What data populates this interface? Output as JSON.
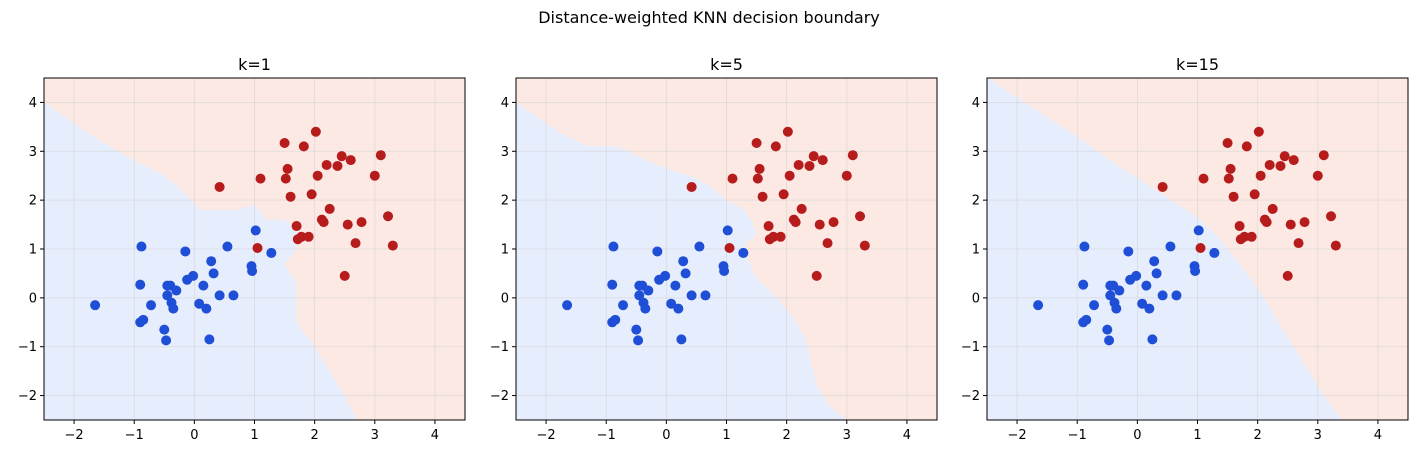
{
  "suptitle": "Distance-weighted KNN decision boundary",
  "colors": {
    "class0_point": "#1f4fd6",
    "class1_point": "#b71c1c",
    "class0_region": "#e6edfd",
    "class1_region": "#fce9e3",
    "grid": "#d3d3d3"
  },
  "chart_data": [
    {
      "type": "scatter",
      "title": "k=1",
      "xlabel": "",
      "ylabel": "",
      "xlim": [
        -2.5,
        4.5
      ],
      "ylim": [
        -2.5,
        4.5
      ],
      "xticks": [
        -2,
        -1,
        0,
        1,
        2,
        3,
        4
      ],
      "yticks": [
        -2,
        -1,
        0,
        1,
        2,
        3,
        4
      ],
      "grid": true,
      "boundary": [
        [
          -2.5,
          4.0
        ],
        [
          -1.8,
          3.4
        ],
        [
          -1.0,
          2.8
        ],
        [
          -0.5,
          2.5
        ],
        [
          -0.3,
          2.3
        ],
        [
          0.1,
          1.8
        ],
        [
          0.4,
          1.8
        ],
        [
          0.7,
          1.8
        ],
        [
          1.0,
          1.9
        ],
        [
          1.2,
          1.6
        ],
        [
          1.5,
          1.6
        ],
        [
          1.7,
          1.4
        ],
        [
          1.7,
          1.0
        ],
        [
          1.5,
          0.7
        ],
        [
          1.7,
          0.3
        ],
        [
          1.7,
          -0.5
        ],
        [
          2.0,
          -1.0
        ],
        [
          2.3,
          -1.6
        ],
        [
          2.5,
          -2.0
        ],
        [
          2.7,
          -2.5
        ]
      ],
      "series": [
        {
          "class": 0,
          "points": [
            [
              -1.65,
              -0.15
            ],
            [
              -0.88,
              1.05
            ],
            [
              -0.9,
              0.27
            ],
            [
              -0.85,
              -0.45
            ],
            [
              -0.9,
              -0.5
            ],
            [
              -0.72,
              -0.15
            ],
            [
              -0.5,
              -0.65
            ],
            [
              -0.47,
              -0.87
            ],
            [
              -0.45,
              0.25
            ],
            [
              -0.45,
              0.05
            ],
            [
              -0.4,
              0.25
            ],
            [
              -0.38,
              -0.1
            ],
            [
              -0.35,
              -0.22
            ],
            [
              -0.3,
              0.15
            ],
            [
              -0.15,
              0.95
            ],
            [
              -0.12,
              0.37
            ],
            [
              -0.02,
              0.45
            ],
            [
              0.08,
              -0.12
            ],
            [
              0.15,
              0.25
            ],
            [
              0.2,
              -0.22
            ],
            [
              0.25,
              -0.85
            ],
            [
              0.28,
              0.75
            ],
            [
              0.32,
              0.5
            ],
            [
              0.42,
              0.05
            ],
            [
              0.55,
              1.05
            ],
            [
              0.65,
              0.05
            ],
            [
              0.95,
              0.65
            ],
            [
              0.96,
              0.55
            ],
            [
              1.02,
              1.38
            ],
            [
              1.28,
              0.92
            ]
          ]
        },
        {
          "class": 1,
          "points": [
            [
              0.42,
              2.27
            ],
            [
              1.05,
              1.02
            ],
            [
              1.1,
              2.44
            ],
            [
              1.5,
              3.17
            ],
            [
              1.52,
              2.44
            ],
            [
              1.55,
              2.64
            ],
            [
              1.6,
              2.07
            ],
            [
              1.7,
              1.47
            ],
            [
              1.72,
              1.2
            ],
            [
              1.78,
              1.25
            ],
            [
              1.82,
              3.1
            ],
            [
              1.9,
              1.25
            ],
            [
              1.95,
              2.12
            ],
            [
              2.02,
              3.4
            ],
            [
              2.05,
              2.5
            ],
            [
              2.12,
              1.6
            ],
            [
              2.15,
              1.55
            ],
            [
              2.2,
              2.72
            ],
            [
              2.25,
              1.82
            ],
            [
              2.38,
              2.7
            ],
            [
              2.45,
              2.9
            ],
            [
              2.5,
              0.45
            ],
            [
              2.55,
              1.5
            ],
            [
              2.6,
              2.82
            ],
            [
              2.68,
              1.12
            ],
            [
              2.78,
              1.55
            ],
            [
              3.0,
              2.5
            ],
            [
              3.1,
              2.92
            ],
            [
              3.22,
              1.67
            ],
            [
              3.3,
              1.07
            ]
          ]
        }
      ]
    },
    {
      "type": "scatter",
      "title": "k=5",
      "xlabel": "",
      "ylabel": "",
      "xlim": [
        -2.5,
        4.5
      ],
      "ylim": [
        -2.5,
        4.5
      ],
      "xticks": [
        -2,
        -1,
        0,
        1,
        2,
        3,
        4
      ],
      "yticks": [
        -2,
        -1,
        0,
        1,
        2,
        3,
        4
      ],
      "grid": true,
      "boundary": [
        [
          -2.5,
          4.0
        ],
        [
          -1.8,
          3.4
        ],
        [
          -1.3,
          3.1
        ],
        [
          -0.8,
          3.1
        ],
        [
          -0.3,
          2.8
        ],
        [
          0.1,
          2.6
        ],
        [
          0.4,
          2.5
        ],
        [
          0.7,
          2.3
        ],
        [
          0.8,
          2.2
        ],
        [
          1.0,
          2.0
        ],
        [
          1.3,
          1.8
        ],
        [
          1.4,
          1.6
        ],
        [
          1.5,
          1.3
        ],
        [
          1.3,
          1.1
        ],
        [
          1.35,
          0.8
        ],
        [
          1.5,
          0.4
        ],
        [
          1.8,
          0.05
        ],
        [
          2.1,
          -0.4
        ],
        [
          2.3,
          -0.8
        ],
        [
          2.4,
          -1.3
        ],
        [
          2.5,
          -1.8
        ],
        [
          2.7,
          -2.2
        ],
        [
          3.0,
          -2.5
        ]
      ],
      "series": [
        {
          "class": 0,
          "points": [
            [
              -1.65,
              -0.15
            ],
            [
              -0.88,
              1.05
            ],
            [
              -0.9,
              0.27
            ],
            [
              -0.85,
              -0.45
            ],
            [
              -0.9,
              -0.5
            ],
            [
              -0.72,
              -0.15
            ],
            [
              -0.5,
              -0.65
            ],
            [
              -0.47,
              -0.87
            ],
            [
              -0.45,
              0.25
            ],
            [
              -0.45,
              0.05
            ],
            [
              -0.4,
              0.25
            ],
            [
              -0.38,
              -0.1
            ],
            [
              -0.35,
              -0.22
            ],
            [
              -0.3,
              0.15
            ],
            [
              -0.15,
              0.95
            ],
            [
              -0.12,
              0.37
            ],
            [
              -0.02,
              0.45
            ],
            [
              0.08,
              -0.12
            ],
            [
              0.15,
              0.25
            ],
            [
              0.2,
              -0.22
            ],
            [
              0.25,
              -0.85
            ],
            [
              0.28,
              0.75
            ],
            [
              0.32,
              0.5
            ],
            [
              0.42,
              0.05
            ],
            [
              0.55,
              1.05
            ],
            [
              0.65,
              0.05
            ],
            [
              0.95,
              0.65
            ],
            [
              0.96,
              0.55
            ],
            [
              1.02,
              1.38
            ],
            [
              1.28,
              0.92
            ]
          ]
        },
        {
          "class": 1,
          "points": [
            [
              0.42,
              2.27
            ],
            [
              1.05,
              1.02
            ],
            [
              1.1,
              2.44
            ],
            [
              1.5,
              3.17
            ],
            [
              1.52,
              2.44
            ],
            [
              1.55,
              2.64
            ],
            [
              1.6,
              2.07
            ],
            [
              1.7,
              1.47
            ],
            [
              1.72,
              1.2
            ],
            [
              1.78,
              1.25
            ],
            [
              1.82,
              3.1
            ],
            [
              1.9,
              1.25
            ],
            [
              1.95,
              2.12
            ],
            [
              2.02,
              3.4
            ],
            [
              2.05,
              2.5
            ],
            [
              2.12,
              1.6
            ],
            [
              2.15,
              1.55
            ],
            [
              2.2,
              2.72
            ],
            [
              2.25,
              1.82
            ],
            [
              2.38,
              2.7
            ],
            [
              2.45,
              2.9
            ],
            [
              2.5,
              0.45
            ],
            [
              2.55,
              1.5
            ],
            [
              2.6,
              2.82
            ],
            [
              2.68,
              1.12
            ],
            [
              2.78,
              1.55
            ],
            [
              3.0,
              2.5
            ],
            [
              3.1,
              2.92
            ],
            [
              3.22,
              1.67
            ],
            [
              3.3,
              1.07
            ]
          ]
        }
      ]
    },
    {
      "type": "scatter",
      "title": "k=15",
      "xlabel": "",
      "ylabel": "",
      "xlim": [
        -2.5,
        4.5
      ],
      "ylim": [
        -2.5,
        4.5
      ],
      "xticks": [
        -2,
        -1,
        0,
        1,
        2,
        3,
        4
      ],
      "yticks": [
        -2,
        -1,
        0,
        1,
        2,
        3,
        4
      ],
      "grid": true,
      "boundary": [
        [
          -2.5,
          4.5
        ],
        [
          -2.0,
          4.1
        ],
        [
          -1.5,
          3.7
        ],
        [
          -1.0,
          3.3
        ],
        [
          -0.5,
          2.85
        ],
        [
          0.0,
          2.45
        ],
        [
          0.5,
          2.05
        ],
        [
          1.0,
          1.65
        ],
        [
          1.3,
          1.3
        ],
        [
          1.5,
          1.0
        ],
        [
          1.7,
          0.7
        ],
        [
          1.9,
          0.35
        ],
        [
          2.1,
          0.0
        ],
        [
          2.3,
          -0.4
        ],
        [
          2.5,
          -0.8
        ],
        [
          2.7,
          -1.2
        ],
        [
          2.9,
          -1.6
        ],
        [
          3.1,
          -2.0
        ],
        [
          3.4,
          -2.5
        ]
      ],
      "series": [
        {
          "class": 0,
          "points": [
            [
              -1.65,
              -0.15
            ],
            [
              -0.88,
              1.05
            ],
            [
              -0.9,
              0.27
            ],
            [
              -0.85,
              -0.45
            ],
            [
              -0.9,
              -0.5
            ],
            [
              -0.72,
              -0.15
            ],
            [
              -0.5,
              -0.65
            ],
            [
              -0.47,
              -0.87
            ],
            [
              -0.45,
              0.25
            ],
            [
              -0.45,
              0.05
            ],
            [
              -0.4,
              0.25
            ],
            [
              -0.38,
              -0.1
            ],
            [
              -0.35,
              -0.22
            ],
            [
              -0.3,
              0.15
            ],
            [
              -0.15,
              0.95
            ],
            [
              -0.12,
              0.37
            ],
            [
              -0.02,
              0.45
            ],
            [
              0.08,
              -0.12
            ],
            [
              0.15,
              0.25
            ],
            [
              0.2,
              -0.22
            ],
            [
              0.25,
              -0.85
            ],
            [
              0.28,
              0.75
            ],
            [
              0.32,
              0.5
            ],
            [
              0.42,
              0.05
            ],
            [
              0.55,
              1.05
            ],
            [
              0.65,
              0.05
            ],
            [
              0.95,
              0.65
            ],
            [
              0.96,
              0.55
            ],
            [
              1.02,
              1.38
            ],
            [
              1.28,
              0.92
            ]
          ]
        },
        {
          "class": 1,
          "points": [
            [
              0.42,
              2.27
            ],
            [
              1.05,
              1.02
            ],
            [
              1.1,
              2.44
            ],
            [
              1.5,
              3.17
            ],
            [
              1.52,
              2.44
            ],
            [
              1.55,
              2.64
            ],
            [
              1.6,
              2.07
            ],
            [
              1.7,
              1.47
            ],
            [
              1.72,
              1.2
            ],
            [
              1.78,
              1.25
            ],
            [
              1.82,
              3.1
            ],
            [
              1.9,
              1.25
            ],
            [
              1.95,
              2.12
            ],
            [
              2.02,
              3.4
            ],
            [
              2.05,
              2.5
            ],
            [
              2.12,
              1.6
            ],
            [
              2.15,
              1.55
            ],
            [
              2.2,
              2.72
            ],
            [
              2.25,
              1.82
            ],
            [
              2.38,
              2.7
            ],
            [
              2.45,
              2.9
            ],
            [
              2.5,
              0.45
            ],
            [
              2.55,
              1.5
            ],
            [
              2.6,
              2.82
            ],
            [
              2.68,
              1.12
            ],
            [
              2.78,
              1.55
            ],
            [
              3.0,
              2.5
            ],
            [
              3.1,
              2.92
            ],
            [
              3.22,
              1.67
            ],
            [
              3.3,
              1.07
            ]
          ]
        }
      ]
    }
  ]
}
